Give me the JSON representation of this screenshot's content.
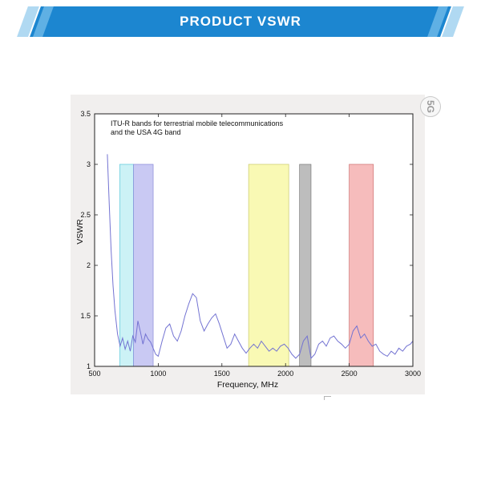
{
  "header": {
    "title": "PRODUCT  VSWR"
  },
  "watermark": {
    "label": "5G"
  },
  "colors": {
    "banner_blue": "#1c86d0",
    "banner_mid": "#5fb0e4",
    "banner_light": "#b0d9f2",
    "figure_bg": "#f1efee",
    "text_dark": "#111111",
    "watermark_gray": "#9a9a9a"
  },
  "chart_data": {
    "type": "line",
    "annotation": {
      "line1": "ITU-R bands for terrestrial mobile telecommunications",
      "line2": "and the USA 4G band"
    },
    "xlabel": "Frequency, MHz",
    "ylabel": "VSWR",
    "xlim": [
      500,
      3000
    ],
    "ylim": [
      1,
      3.5
    ],
    "xticks": [
      500,
      1000,
      1500,
      2000,
      2500,
      3000
    ],
    "yticks": [
      1,
      1.5,
      2,
      2.5,
      3,
      3.5
    ],
    "grid": false,
    "legend": "none",
    "band_range": [
      1,
      3
    ],
    "bands": [
      {
        "name": "700mhz-band",
        "x0": 698,
        "x1": 806,
        "color": "#ccf2f6",
        "border": "#5bc8dc"
      },
      {
        "name": "850-960-band",
        "x0": 806,
        "x1": 960,
        "color": "#c9c9f3",
        "border": "#8888d8"
      },
      {
        "name": "1710-2025-band",
        "x0": 1710,
        "x1": 2025,
        "color": "#f9f9b4",
        "border": "#c9c96a"
      },
      {
        "name": "2110-2200-band",
        "x0": 2110,
        "x1": 2200,
        "color": "#bdbdbd",
        "border": "#7a7a7a"
      },
      {
        "name": "2500-2690-band",
        "x0": 2500,
        "x1": 2690,
        "color": "#f6bcbc",
        "border": "#cc7070"
      }
    ],
    "line_color": "#7373d2",
    "series": [
      {
        "name": "VSWR",
        "x": [
          600,
          615,
          630,
          645,
          660,
          680,
          700,
          720,
          740,
          760,
          780,
          800,
          820,
          840,
          860,
          880,
          900,
          920,
          940,
          960,
          980,
          1000,
          1030,
          1060,
          1090,
          1120,
          1150,
          1180,
          1210,
          1240,
          1270,
          1300,
          1330,
          1360,
          1390,
          1420,
          1450,
          1480,
          1510,
          1540,
          1570,
          1600,
          1630,
          1660,
          1690,
          1720,
          1750,
          1780,
          1810,
          1840,
          1870,
          1900,
          1930,
          1960,
          1990,
          2020,
          2050,
          2080,
          2110,
          2140,
          2170,
          2200,
          2230,
          2260,
          2290,
          2320,
          2350,
          2380,
          2410,
          2440,
          2470,
          2500,
          2530,
          2560,
          2590,
          2620,
          2650,
          2680,
          2710,
          2740,
          2770,
          2800,
          2830,
          2860,
          2890,
          2920,
          2950,
          2980,
          3000
        ],
        "y": [
          3.1,
          2.6,
          2.15,
          1.8,
          1.55,
          1.32,
          1.2,
          1.28,
          1.17,
          1.25,
          1.15,
          1.3,
          1.24,
          1.45,
          1.34,
          1.22,
          1.32,
          1.27,
          1.24,
          1.18,
          1.12,
          1.1,
          1.25,
          1.38,
          1.42,
          1.3,
          1.25,
          1.35,
          1.5,
          1.62,
          1.72,
          1.68,
          1.45,
          1.35,
          1.42,
          1.48,
          1.52,
          1.42,
          1.3,
          1.18,
          1.22,
          1.32,
          1.25,
          1.18,
          1.13,
          1.18,
          1.22,
          1.18,
          1.25,
          1.2,
          1.15,
          1.18,
          1.15,
          1.2,
          1.22,
          1.18,
          1.12,
          1.08,
          1.12,
          1.25,
          1.3,
          1.08,
          1.12,
          1.22,
          1.25,
          1.2,
          1.28,
          1.3,
          1.25,
          1.22,
          1.18,
          1.22,
          1.35,
          1.4,
          1.28,
          1.32,
          1.25,
          1.2,
          1.22,
          1.15,
          1.12,
          1.1,
          1.15,
          1.12,
          1.18,
          1.15,
          1.2,
          1.22,
          1.25
        ]
      }
    ]
  }
}
